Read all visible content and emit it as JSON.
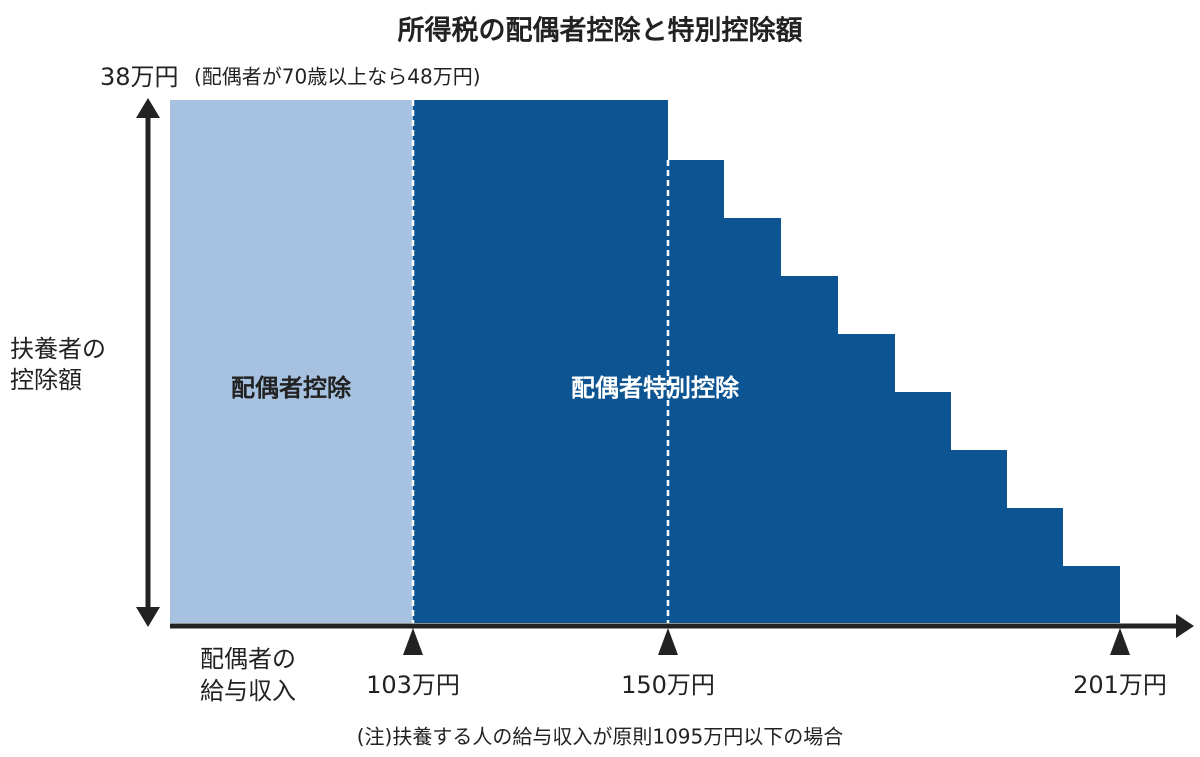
{
  "title": "所得税の配偶者控除と特別控除額",
  "top_label": {
    "amount": "38万円",
    "note": "(配偶者が70歳以上なら48万円)"
  },
  "y_axis_label": [
    "扶養者の",
    "控除額"
  ],
  "x_axis_label": [
    "配偶者の",
    "給与収入"
  ],
  "regions": [
    "配偶者控除",
    "配偶者特別控除"
  ],
  "markers": [
    "103万円",
    "150万円",
    "201万円"
  ],
  "note": "(注)扶養する人の給与収入が原則1095万円以下の場合"
}
